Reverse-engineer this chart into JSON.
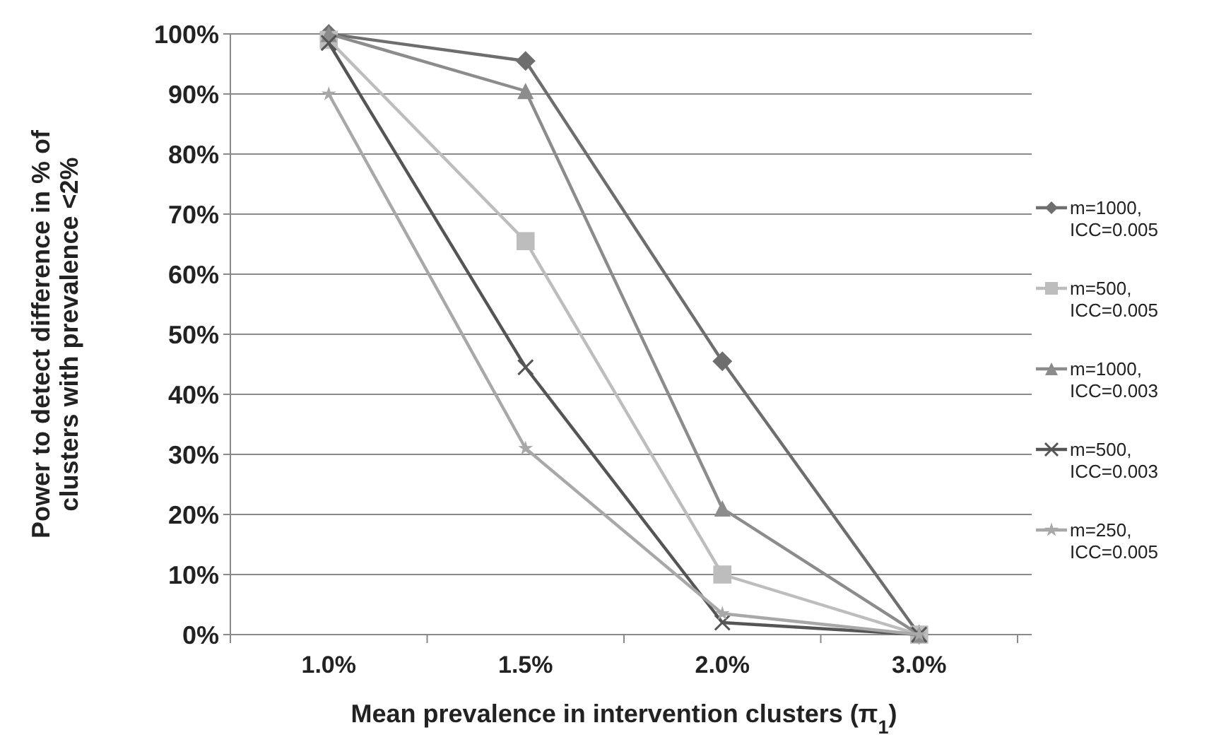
{
  "chart_data": {
    "type": "line",
    "xlabel": "Mean prevalence in intervention clusters (π$_{1}$)",
    "ylabel": "Power to detect difference in % of\nclusters with prevalence <2%",
    "categories": [
      "1.0%",
      "1.5%",
      "2.0%",
      "3.0%"
    ],
    "series": [
      {
        "name": "m=1000, ICC=0.005",
        "color": "#6e6e6e",
        "marker": "diamond",
        "values": [
          100,
          95.5,
          45.5,
          0
        ]
      },
      {
        "name": "m=500, ICC=0.005",
        "color": "#bdbdbd",
        "marker": "square",
        "values": [
          99,
          65.5,
          10,
          0
        ]
      },
      {
        "name": "m=1000, ICC=0.003",
        "color": "#8c8c8c",
        "marker": "triangle",
        "values": [
          100,
          90.5,
          21,
          0
        ]
      },
      {
        "name": "m=500, ICC=0.003",
        "color": "#555555",
        "marker": "cross",
        "values": [
          98.5,
          44.5,
          2,
          0
        ]
      },
      {
        "name": "m=250, ICC=0.005",
        "color": "#a8a8a8",
        "marker": "star",
        "values": [
          90,
          31,
          3.5,
          0
        ]
      }
    ],
    "ylim": [
      0,
      100
    ],
    "yticks": [
      {
        "value": 0,
        "label": "0%"
      },
      {
        "value": 10,
        "label": "10%"
      },
      {
        "value": 20,
        "label": "20%"
      },
      {
        "value": 30,
        "label": "30%"
      },
      {
        "value": 40,
        "label": "40%"
      },
      {
        "value": 50,
        "label": "50%"
      },
      {
        "value": 60,
        "label": "60%"
      },
      {
        "value": 70,
        "label": "70%"
      },
      {
        "value": 80,
        "label": "80%"
      },
      {
        "value": 90,
        "label": "90%"
      },
      {
        "value": 100,
        "label": "100%"
      }
    ],
    "grid": "y",
    "legend": "right",
    "line_style": "solid"
  }
}
